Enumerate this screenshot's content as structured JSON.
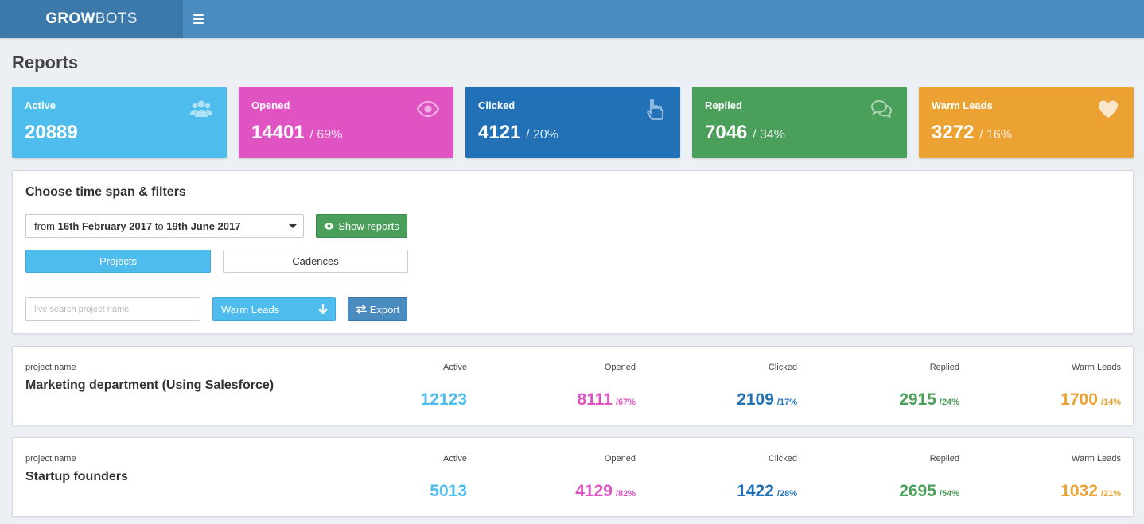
{
  "app": {
    "logo_bold": "GROW",
    "logo_light": "BOTS"
  },
  "page": {
    "title": "Reports"
  },
  "stats": [
    {
      "label": "Active",
      "value": "20889",
      "pct": "",
      "icon": "users-icon",
      "color": "#4ebdee"
    },
    {
      "label": "Opened",
      "value": "14401",
      "pct": "/ 69%",
      "icon": "eye-icon",
      "color": "#df53c3"
    },
    {
      "label": "Clicked",
      "value": "4121",
      "pct": "/ 20%",
      "icon": "pointer-hand-icon",
      "color": "#2271b6"
    },
    {
      "label": "Replied",
      "value": "7046",
      "pct": "/ 34%",
      "icon": "chat-bubbles-icon",
      "color": "#4aa05a"
    },
    {
      "label": "Warm Leads",
      "value": "3272",
      "pct": "/ 16%",
      "icon": "heart-icon",
      "color": "#eba232"
    }
  ],
  "filters": {
    "heading": "Choose time span & filters",
    "date_from_prefix": "from",
    "date_from": "16th February 2017",
    "date_to_prefix": "to",
    "date_to": "19th June 2017",
    "show_reports": "Show reports",
    "tab_projects": "Projects",
    "tab_cadences": "Cadences",
    "search_placeholder": "live search project name",
    "sort_value": "Warm Leads",
    "export": "Export"
  },
  "columns": {
    "project_name": "project name",
    "active": "Active",
    "opened": "Opened",
    "clicked": "Clicked",
    "replied": "Replied",
    "warm": "Warm Leads"
  },
  "projects": [
    {
      "name": "Marketing department (Using Salesforce)",
      "active": "12123",
      "opened": "8111",
      "opened_pct": "/67%",
      "clicked": "2109",
      "clicked_pct": "/17%",
      "replied": "2915",
      "replied_pct": "/24%",
      "warm": "1700",
      "warm_pct": "/14%"
    },
    {
      "name": "Startup founders",
      "active": "5013",
      "opened": "4129",
      "opened_pct": "/82%",
      "clicked": "1422",
      "clicked_pct": "/28%",
      "replied": "2695",
      "replied_pct": "/54%",
      "warm": "1032",
      "warm_pct": "/21%"
    }
  ]
}
